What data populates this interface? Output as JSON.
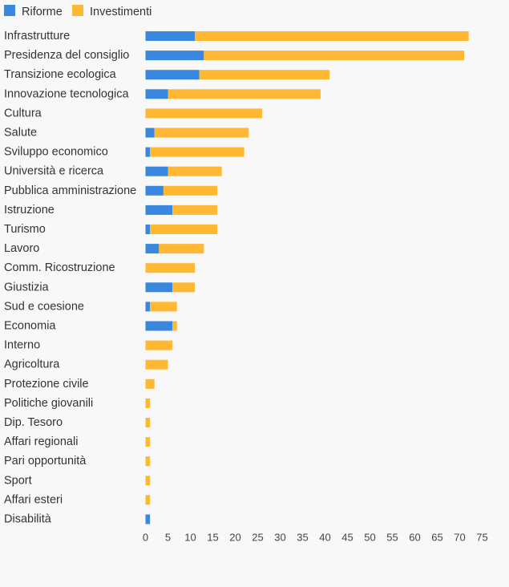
{
  "chart_data": {
    "type": "bar",
    "orientation": "horizontal",
    "stacked": true,
    "title": "",
    "xlabel": "",
    "ylabel": "",
    "legend": {
      "position": "top-left",
      "entries": [
        "Riforme",
        "Investimenti"
      ]
    },
    "grid": false,
    "xlim": [
      0,
      75
    ],
    "xticks": [
      0,
      5,
      10,
      15,
      20,
      25,
      30,
      35,
      40,
      45,
      50,
      55,
      60,
      65,
      70,
      75
    ],
    "categories": [
      "Infrastrutture",
      "Presidenza del consiglio",
      "Transizione ecologica",
      "Innovazione tecnologica",
      "Cultura",
      "Salute",
      "Sviluppo economico",
      "Università e ricerca",
      "Pubblica amministrazione",
      "Istruzione",
      "Turismo",
      "Lavoro",
      "Comm. Ricostruzione",
      "Giustizia",
      "Sud e coesione",
      "Economia",
      "Interno",
      "Agricoltura",
      "Protezione civile",
      "Politiche giovanili",
      "Dip. Tesoro",
      "Affari regionali",
      "Pari opportunità",
      "Sport",
      "Affari esteri",
      "Disabilità"
    ],
    "series": [
      {
        "name": "Riforme",
        "color": "#3a87e0",
        "values": [
          11,
          13,
          12,
          5,
          0,
          2,
          1,
          5,
          4,
          6,
          1,
          3,
          0,
          6,
          1,
          6,
          0,
          0,
          0,
          0,
          0,
          0,
          0,
          0,
          0,
          1
        ]
      },
      {
        "name": "Investimenti",
        "color": "#ffb833",
        "values": [
          61,
          58,
          29,
          34,
          26,
          21,
          21,
          12,
          12,
          10,
          15,
          10,
          11,
          5,
          6,
          1,
          6,
          5,
          2,
          1,
          1,
          1,
          1,
          1,
          1,
          0
        ]
      }
    ]
  }
}
